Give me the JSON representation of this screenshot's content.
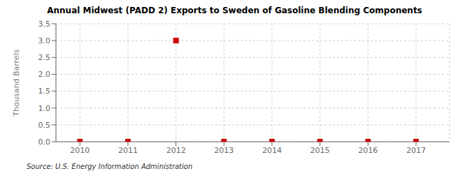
{
  "chart_data": {
    "type": "scatter",
    "title": "Annual Midwest (PADD 2) Exports to Sweden of Gasoline Blending Components",
    "y_label": "Thousand Barrels",
    "annotations": [
      "Source: U.S. Energy Information Administration"
    ],
    "x": [
      2010,
      2011,
      2012,
      2013,
      2014,
      2015,
      2016,
      2017
    ],
    "values": [
      0,
      0,
      3.0,
      0,
      0,
      0,
      0,
      0
    ],
    "color": "#cc0000",
    "marker": "square",
    "xlim": [
      2009.5,
      2017.7
    ],
    "ylim": [
      0.0,
      3.5
    ],
    "xticks": [
      2010,
      2011,
      2012,
      2013,
      2014,
      2015,
      2016,
      2017
    ],
    "yticks": [
      {
        "value": 0,
        "label": "0.0"
      },
      0.5,
      {
        "value": 1,
        "label": "1.0"
      },
      1.5,
      {
        "value": 2,
        "label": "2.0"
      },
      2.5,
      {
        "value": 3,
        "label": "3.0"
      },
      3.5
    ],
    "grid": true
  }
}
